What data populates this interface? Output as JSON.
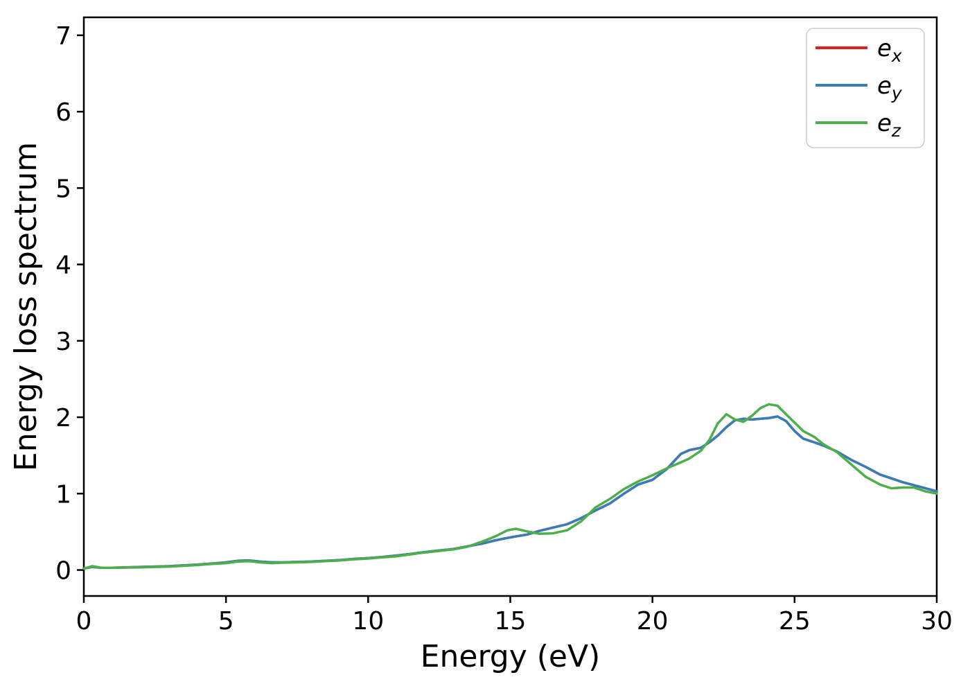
{
  "figure": {
    "background": "#ffffff"
  },
  "axes": {
    "spine_color": "#000000",
    "tick_color": "#000000",
    "text_color": "#000000"
  },
  "legend": {
    "border_color": "#cccccc",
    "background": "#ffffff",
    "entries": [
      {
        "base": "e",
        "sub": "x",
        "color": "#e41a1c"
      },
      {
        "base": "e",
        "sub": "y",
        "color": "#377eb8"
      },
      {
        "base": "e",
        "sub": "z",
        "color": "#4daf4a"
      }
    ]
  },
  "chart_data": {
    "type": "line",
    "title": "",
    "xlabel": "Energy (eV)",
    "ylabel": "Energy loss spectrum",
    "xlim": [
      0,
      30
    ],
    "ylim": [
      -0.34,
      7.235
    ],
    "x_ticks": [
      0,
      5,
      10,
      15,
      20,
      25,
      30
    ],
    "y_ticks": [
      0,
      1,
      2,
      3,
      4,
      5,
      6,
      7
    ],
    "grid": false,
    "legend_position": "upper right",
    "x": [
      0,
      0.3,
      0.6,
      1,
      1.5,
      2,
      2.5,
      3,
      3.5,
      4,
      4.5,
      5,
      5.4,
      5.8,
      6.2,
      6.6,
      7,
      7.5,
      8,
      8.5,
      9,
      9.5,
      10,
      10.5,
      11,
      11.5,
      12,
      12.5,
      13,
      13.5,
      14,
      14.5,
      14.9,
      15.2,
      15.6,
      16,
      16.5,
      17,
      17.5,
      18,
      18.5,
      19,
      19.5,
      20,
      20.5,
      21,
      21.3,
      21.7,
      22,
      22.3,
      22.6,
      22.9,
      23.2,
      23.5,
      23.8,
      24.1,
      24.4,
      24.7,
      25,
      25.3,
      25.7,
      26,
      26.5,
      27,
      27.5,
      28,
      28.4,
      28.8,
      29.2,
      29.6,
      30
    ],
    "series": [
      {
        "name": "e_x",
        "color": "#e41a1c",
        "values": [
          0.02,
          0.04,
          0.03,
          0.03,
          0.035,
          0.04,
          0.045,
          0.05,
          0.06,
          0.07,
          0.085,
          0.1,
          0.12,
          0.125,
          0.11,
          0.1,
          0.1,
          0.105,
          0.11,
          0.12,
          0.13,
          0.145,
          0.155,
          0.17,
          0.19,
          0.21,
          0.235,
          0.255,
          0.275,
          0.31,
          0.345,
          0.39,
          0.42,
          0.44,
          0.465,
          0.51,
          0.555,
          0.6,
          0.68,
          0.78,
          0.87,
          1.0,
          1.12,
          1.18,
          1.32,
          1.52,
          1.57,
          1.6,
          1.67,
          1.76,
          1.87,
          1.96,
          1.98,
          1.97,
          1.98,
          1.99,
          2.01,
          1.95,
          1.82,
          1.72,
          1.67,
          1.63,
          1.55,
          1.44,
          1.35,
          1.25,
          1.2,
          1.15,
          1.11,
          1.07,
          1.03
        ]
      },
      {
        "name": "e_y",
        "color": "#377eb8",
        "values": [
          0.02,
          0.04,
          0.03,
          0.03,
          0.035,
          0.04,
          0.045,
          0.05,
          0.06,
          0.07,
          0.085,
          0.1,
          0.12,
          0.125,
          0.11,
          0.1,
          0.1,
          0.105,
          0.11,
          0.12,
          0.13,
          0.145,
          0.155,
          0.17,
          0.19,
          0.21,
          0.235,
          0.255,
          0.275,
          0.31,
          0.345,
          0.39,
          0.42,
          0.44,
          0.465,
          0.51,
          0.555,
          0.6,
          0.68,
          0.78,
          0.87,
          1.0,
          1.12,
          1.18,
          1.32,
          1.52,
          1.57,
          1.6,
          1.67,
          1.76,
          1.87,
          1.96,
          1.98,
          1.97,
          1.98,
          1.99,
          2.01,
          1.95,
          1.82,
          1.72,
          1.67,
          1.63,
          1.55,
          1.44,
          1.35,
          1.25,
          1.2,
          1.15,
          1.11,
          1.07,
          1.03
        ]
      },
      {
        "name": "e_z",
        "color": "#4daf4a",
        "values": [
          0.02,
          0.05,
          0.03,
          0.03,
          0.032,
          0.035,
          0.04,
          0.045,
          0.055,
          0.065,
          0.08,
          0.09,
          0.11,
          0.115,
          0.1,
          0.09,
          0.095,
          0.1,
          0.105,
          0.115,
          0.125,
          0.14,
          0.15,
          0.165,
          0.18,
          0.205,
          0.23,
          0.25,
          0.27,
          0.305,
          0.37,
          0.445,
          0.52,
          0.54,
          0.505,
          0.475,
          0.48,
          0.52,
          0.64,
          0.82,
          0.93,
          1.06,
          1.16,
          1.24,
          1.33,
          1.41,
          1.46,
          1.56,
          1.7,
          1.92,
          2.04,
          1.97,
          1.94,
          2.02,
          2.12,
          2.17,
          2.15,
          2.04,
          1.93,
          1.82,
          1.74,
          1.65,
          1.54,
          1.38,
          1.22,
          1.12,
          1.07,
          1.08,
          1.08,
          1.03,
          1.0
        ]
      }
    ]
  }
}
